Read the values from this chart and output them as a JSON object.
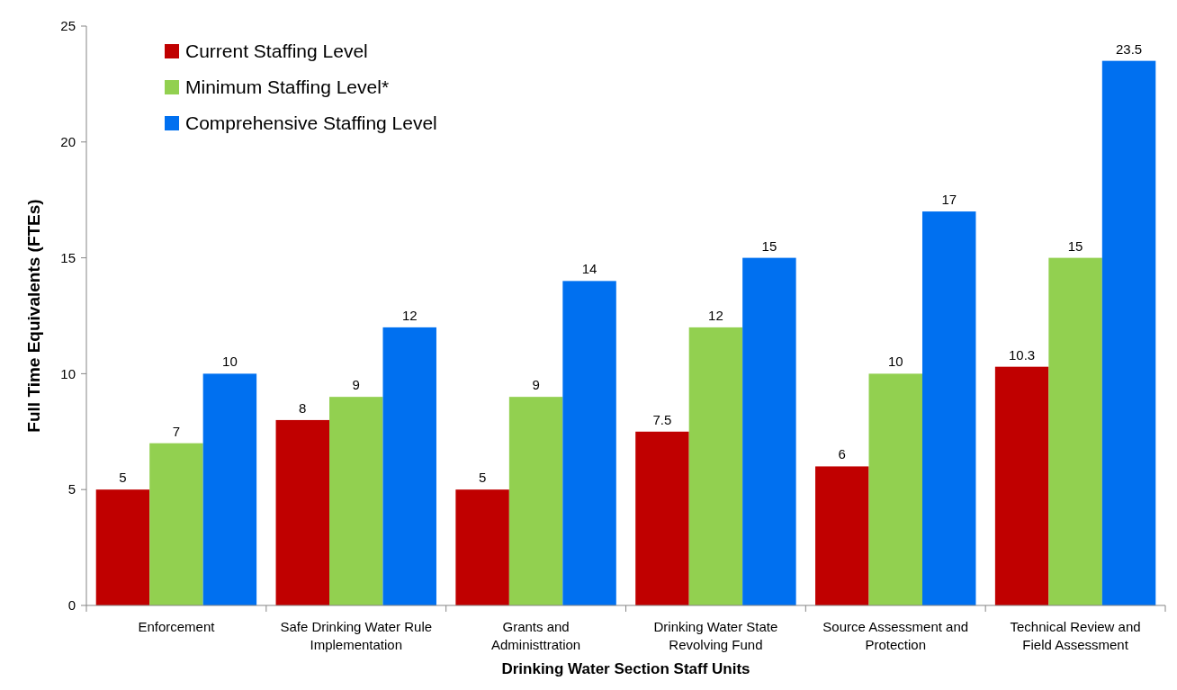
{
  "chart_data": {
    "type": "bar",
    "xlabel": "Drinking Water Section Staff Units",
    "ylabel": "Full Time Equivalents (FTEs)",
    "categories": [
      "Enforcement",
      "Safe Drinking Water Rule Implementation",
      "Grants and Administtration",
      "Drinking Water State Revolving Fund",
      "Source Assessment and Protection",
      "Technical Review and Field Assessment"
    ],
    "series": [
      {
        "name": "Current Staffing Level",
        "color": "#c00000",
        "values": [
          5,
          8,
          5,
          7.5,
          6,
          10.3
        ]
      },
      {
        "name": "Minimum Staffing Level*",
        "color": "#92d050",
        "values": [
          7,
          9,
          9,
          12,
          10,
          15
        ]
      },
      {
        "name": "Comprehensive Staffing Level",
        "color": "#0070f0",
        "values": [
          10,
          12,
          14,
          15,
          17,
          23.5
        ]
      }
    ],
    "ylim": [
      0,
      25
    ],
    "yticks": [
      0,
      5,
      10,
      15,
      20,
      25
    ],
    "data_labels": true,
    "legend": "top left",
    "grid": false
  }
}
